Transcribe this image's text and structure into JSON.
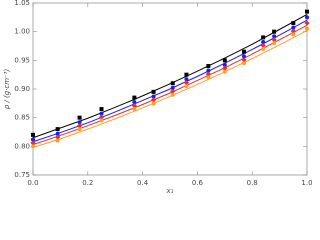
{
  "chart_data": {
    "type": "line",
    "x_label": "x₁",
    "y_label": "ρ / (g·cm⁻³)",
    "xlim": [
      0,
      1
    ],
    "xticks": [
      {
        "value": 0,
        "label": "0.0"
      },
      0.2,
      0.4,
      0.6,
      0.8,
      {
        "value": 1,
        "label": "1.0"
      }
    ],
    "ylim": [
      0.75,
      1.05
    ],
    "yticks": [
      0.75,
      {
        "value": 0.8,
        "label": "0.80"
      },
      0.85,
      {
        "value": 0.9,
        "label": "0.90"
      },
      0.95,
      {
        "value": 1,
        "label": "1.00"
      },
      1.05
    ],
    "series": [
      {
        "mode": "line",
        "color": "#000000",
        "x": [
          0,
          0.1,
          0.2,
          0.3,
          0.4,
          0.5,
          0.6,
          0.7,
          0.8,
          0.9,
          1.0
        ],
        "values": [
          0.815,
          0.832,
          0.849,
          0.868,
          0.888,
          0.909,
          0.931,
          0.954,
          0.978,
          1.004,
          1.03
        ]
      },
      {
        "mode": "line",
        "color": "#1a1aff",
        "x": [
          0,
          0.1,
          0.2,
          0.3,
          0.4,
          0.5,
          0.6,
          0.7,
          0.8,
          0.9,
          1.0
        ],
        "values": [
          0.808,
          0.824,
          0.841,
          0.86,
          0.88,
          0.9,
          0.922,
          0.945,
          0.969,
          0.994,
          1.02
        ]
      },
      {
        "mode": "line",
        "color": "#e8301a",
        "x": [
          0,
          0.1,
          0.2,
          0.3,
          0.4,
          0.5,
          0.6,
          0.7,
          0.8,
          0.9,
          1.0
        ],
        "values": [
          0.803,
          0.819,
          0.836,
          0.854,
          0.873,
          0.893,
          0.915,
          0.937,
          0.961,
          0.986,
          1.011
        ]
      },
      {
        "mode": "line",
        "color": "#f5a030",
        "x": [
          0,
          0.1,
          0.2,
          0.3,
          0.4,
          0.5,
          0.6,
          0.7,
          0.8,
          0.9,
          1.0
        ],
        "values": [
          0.798,
          0.813,
          0.83,
          0.848,
          0.867,
          0.887,
          0.908,
          0.93,
          0.953,
          0.977,
          1.002
        ]
      },
      {
        "mode": "markers",
        "marker": "square",
        "color": "#000000",
        "x": [
          0,
          0.09,
          0.17,
          0.25,
          0.37,
          0.44,
          0.51,
          0.56,
          0.64,
          0.7,
          0.77,
          0.84,
          0.88,
          0.95,
          1.0
        ],
        "values": [
          0.82,
          0.83,
          0.85,
          0.865,
          0.885,
          0.895,
          0.91,
          0.925,
          0.94,
          0.95,
          0.965,
          0.99,
          1.0,
          1.015,
          1.035
        ]
      },
      {
        "mode": "markers",
        "marker": "circle",
        "color": "#1a1aff",
        "x": [
          0,
          0.09,
          0.17,
          0.25,
          0.37,
          0.44,
          0.51,
          0.56,
          0.64,
          0.7,
          0.77,
          0.84,
          0.88,
          0.95,
          1.0
        ],
        "values": [
          0.812,
          0.822,
          0.842,
          0.857,
          0.877,
          0.887,
          0.902,
          0.917,
          0.932,
          0.942,
          0.957,
          0.982,
          0.992,
          1.007,
          1.025
        ]
      },
      {
        "mode": "markers",
        "marker": "diamond",
        "color": "#e8301a",
        "x": [
          0,
          0.09,
          0.17,
          0.25,
          0.37,
          0.44,
          0.51,
          0.56,
          0.64,
          0.7,
          0.77,
          0.84,
          0.88,
          0.95,
          1.0
        ],
        "values": [
          0.806,
          0.816,
          0.836,
          0.851,
          0.871,
          0.881,
          0.896,
          0.911,
          0.926,
          0.936,
          0.951,
          0.976,
          0.986,
          1.001,
          1.015
        ]
      },
      {
        "mode": "markers",
        "marker": "circle",
        "color": "#f5a030",
        "x": [
          0,
          0.09,
          0.17,
          0.25,
          0.37,
          0.44,
          0.51,
          0.56,
          0.64,
          0.7,
          0.77,
          0.84,
          0.88,
          0.95,
          1.0
        ],
        "values": [
          0.8,
          0.81,
          0.83,
          0.845,
          0.865,
          0.875,
          0.89,
          0.905,
          0.92,
          0.93,
          0.945,
          0.97,
          0.98,
          0.995,
          1.005
        ]
      }
    ]
  }
}
